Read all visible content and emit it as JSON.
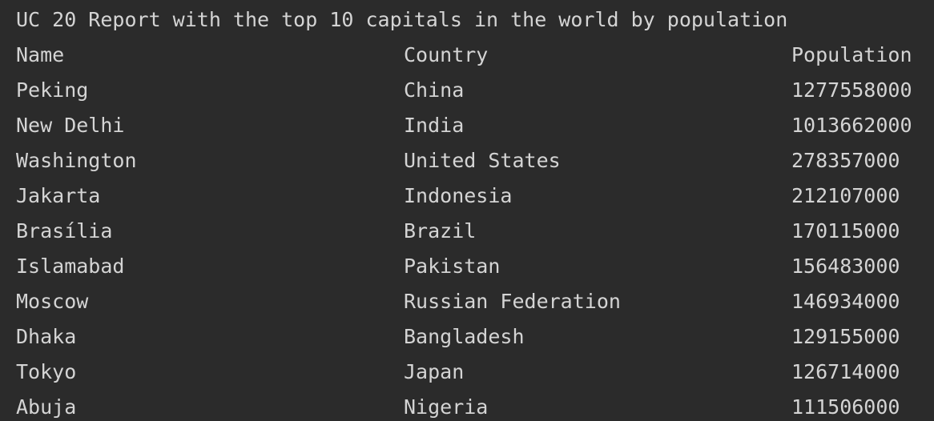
{
  "report": {
    "title": "UC 20 Report with the top 10 capitals in the world by population",
    "headers": {
      "name": "Name",
      "country": "Country",
      "population": "Population"
    },
    "rows": [
      {
        "name": "Peking",
        "country": "China",
        "population": "1277558000"
      },
      {
        "name": "New Delhi",
        "country": "India",
        "population": "1013662000"
      },
      {
        "name": "Washington",
        "country": "United States",
        "population": "278357000"
      },
      {
        "name": "Jakarta",
        "country": "Indonesia",
        "population": "212107000"
      },
      {
        "name": "Brasília",
        "country": "Brazil",
        "population": "170115000"
      },
      {
        "name": "Islamabad",
        "country": "Pakistan",
        "population": "156483000"
      },
      {
        "name": "Moscow",
        "country": "Russian Federation",
        "population": "146934000"
      },
      {
        "name": "Dhaka",
        "country": "Bangladesh",
        "population": "129155000"
      },
      {
        "name": "Tokyo",
        "country": "Japan",
        "population": "126714000"
      },
      {
        "name": "Abuja",
        "country": "Nigeria",
        "population": "111506000"
      }
    ]
  },
  "colors": {
    "background": "#2b2b2b",
    "text": "#d4d4d4"
  }
}
